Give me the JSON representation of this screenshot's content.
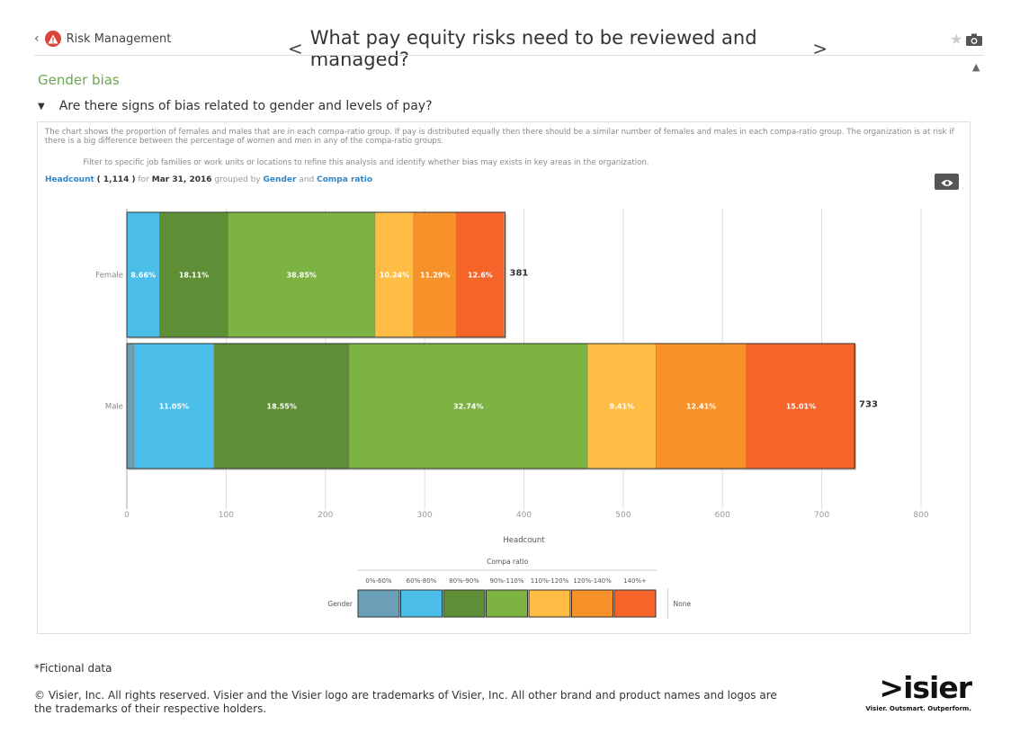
{
  "header": {
    "back_label": "Risk Management",
    "title": "What pay equity risks need to be reviewed and managed?",
    "prev_symbol": "<",
    "next_symbol": ">"
  },
  "section": {
    "title": "Gender bias",
    "question": "Are there signs of bias related to gender and levels of pay?"
  },
  "panel": {
    "description": "The chart shows the proportion of females and males that are in each compa-ratio group. If pay is distributed equally then there should be a similar number of females and males in each compa-ratio group. The organization is at risk if there is a big difference between the percentage of women and men in any of the compa-ratio groups.",
    "filter_tip": "Filter to specific job families or work units or locations to refine this analysis and identify whether bias may exists in key areas in the organization.",
    "metric": "Headcount",
    "metric_value": "( 1,114 )",
    "for_text": "for",
    "date": "Mar 31, 2016",
    "grouped_text": "grouped by",
    "group1": "Gender",
    "and_text": "and",
    "group2": "Compa ratio"
  },
  "chart_data": {
    "type": "bar",
    "orientation": "horizontal",
    "stacked": true,
    "categories": [
      "Female",
      "Male"
    ],
    "totals": [
      381,
      733
    ],
    "xlabel": "Headcount",
    "xlim": [
      0,
      800
    ],
    "xticks": [
      0,
      100,
      200,
      300,
      400,
      500,
      600,
      700,
      800
    ],
    "grid": true,
    "legend_title": "Compa ratio",
    "legend_row_label": "Gender",
    "legend_none_label": "None",
    "series": [
      {
        "name": "0%-60%",
        "color": "#6a9fb5",
        "values": [
          0,
          7
        ],
        "labels": [
          "",
          ""
        ]
      },
      {
        "name": "60%-80%",
        "color": "#4bbde9",
        "values": [
          33,
          81
        ],
        "labels": [
          "8.66%",
          "11.05%"
        ]
      },
      {
        "name": "80%-90%",
        "color": "#5e8f36",
        "values": [
          69,
          136
        ],
        "labels": [
          "18.11%",
          "18.55%"
        ]
      },
      {
        "name": "90%-110%",
        "color": "#7cb342",
        "values": [
          148,
          240
        ],
        "labels": [
          "38.85%",
          "32.74%"
        ]
      },
      {
        "name": "110%-120%",
        "color": "#ffbd45",
        "values": [
          39,
          69
        ],
        "labels": [
          "10.24%",
          "9.41%"
        ]
      },
      {
        "name": "120%-140%",
        "color": "#f7922a",
        "values": [
          43,
          91
        ],
        "labels": [
          "11.29%",
          "12.41%"
        ]
      },
      {
        "name": "140%+",
        "color": "#f7642a",
        "values": [
          48,
          110
        ],
        "labels": [
          "12.6%",
          "15.01%"
        ]
      }
    ]
  },
  "footer": {
    "note": "*Fictional data",
    "copyright": "© Visier, Inc. All rights reserved. Visier and the Visier logo are trademarks of Visier, Inc. All other brand and product names and logos are the trademarks of their respective holders.",
    "logo_text": ">isier",
    "logo_tagline": "Visier. Outsmart. Outperform."
  }
}
